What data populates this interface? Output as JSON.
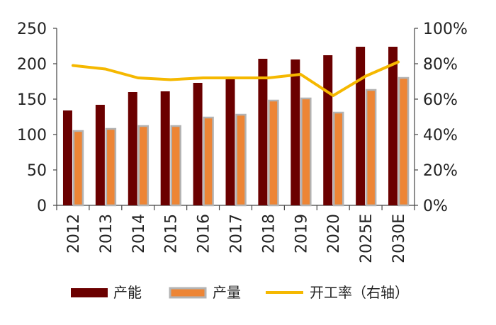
{
  "chart_data": {
    "type": "bar",
    "categories": [
      "2012",
      "2013",
      "2014",
      "2015",
      "2016",
      "2017",
      "2018",
      "2019",
      "2020",
      "2025E",
      "2030E"
    ],
    "series": [
      {
        "name": "产能",
        "kind": "bar",
        "axis": "left",
        "color": "#6b0000",
        "values": [
          134,
          142,
          160,
          161,
          173,
          178,
          207,
          206,
          212,
          224,
          224
        ]
      },
      {
        "name": "产量",
        "kind": "bar",
        "axis": "left",
        "color": "#ed8535",
        "values": [
          105,
          108,
          112,
          112,
          124,
          128,
          148,
          151,
          131,
          163,
          180
        ]
      },
      {
        "name": "开工率（右轴）",
        "kind": "line",
        "axis": "right",
        "color": "#f5b800",
        "values": [
          79,
          77,
          72,
          71,
          72,
          72,
          72,
          74,
          62,
          73,
          81
        ]
      }
    ],
    "y_left": {
      "min": 0,
      "max": 250,
      "ticks": [
        0,
        50,
        100,
        150,
        200,
        250
      ]
    },
    "y_right": {
      "min": 0,
      "max": 100,
      "ticks": [
        "0%",
        "20%",
        "40%",
        "60%",
        "80%",
        "100%"
      ]
    },
    "legend": {
      "position": "bottom"
    }
  }
}
